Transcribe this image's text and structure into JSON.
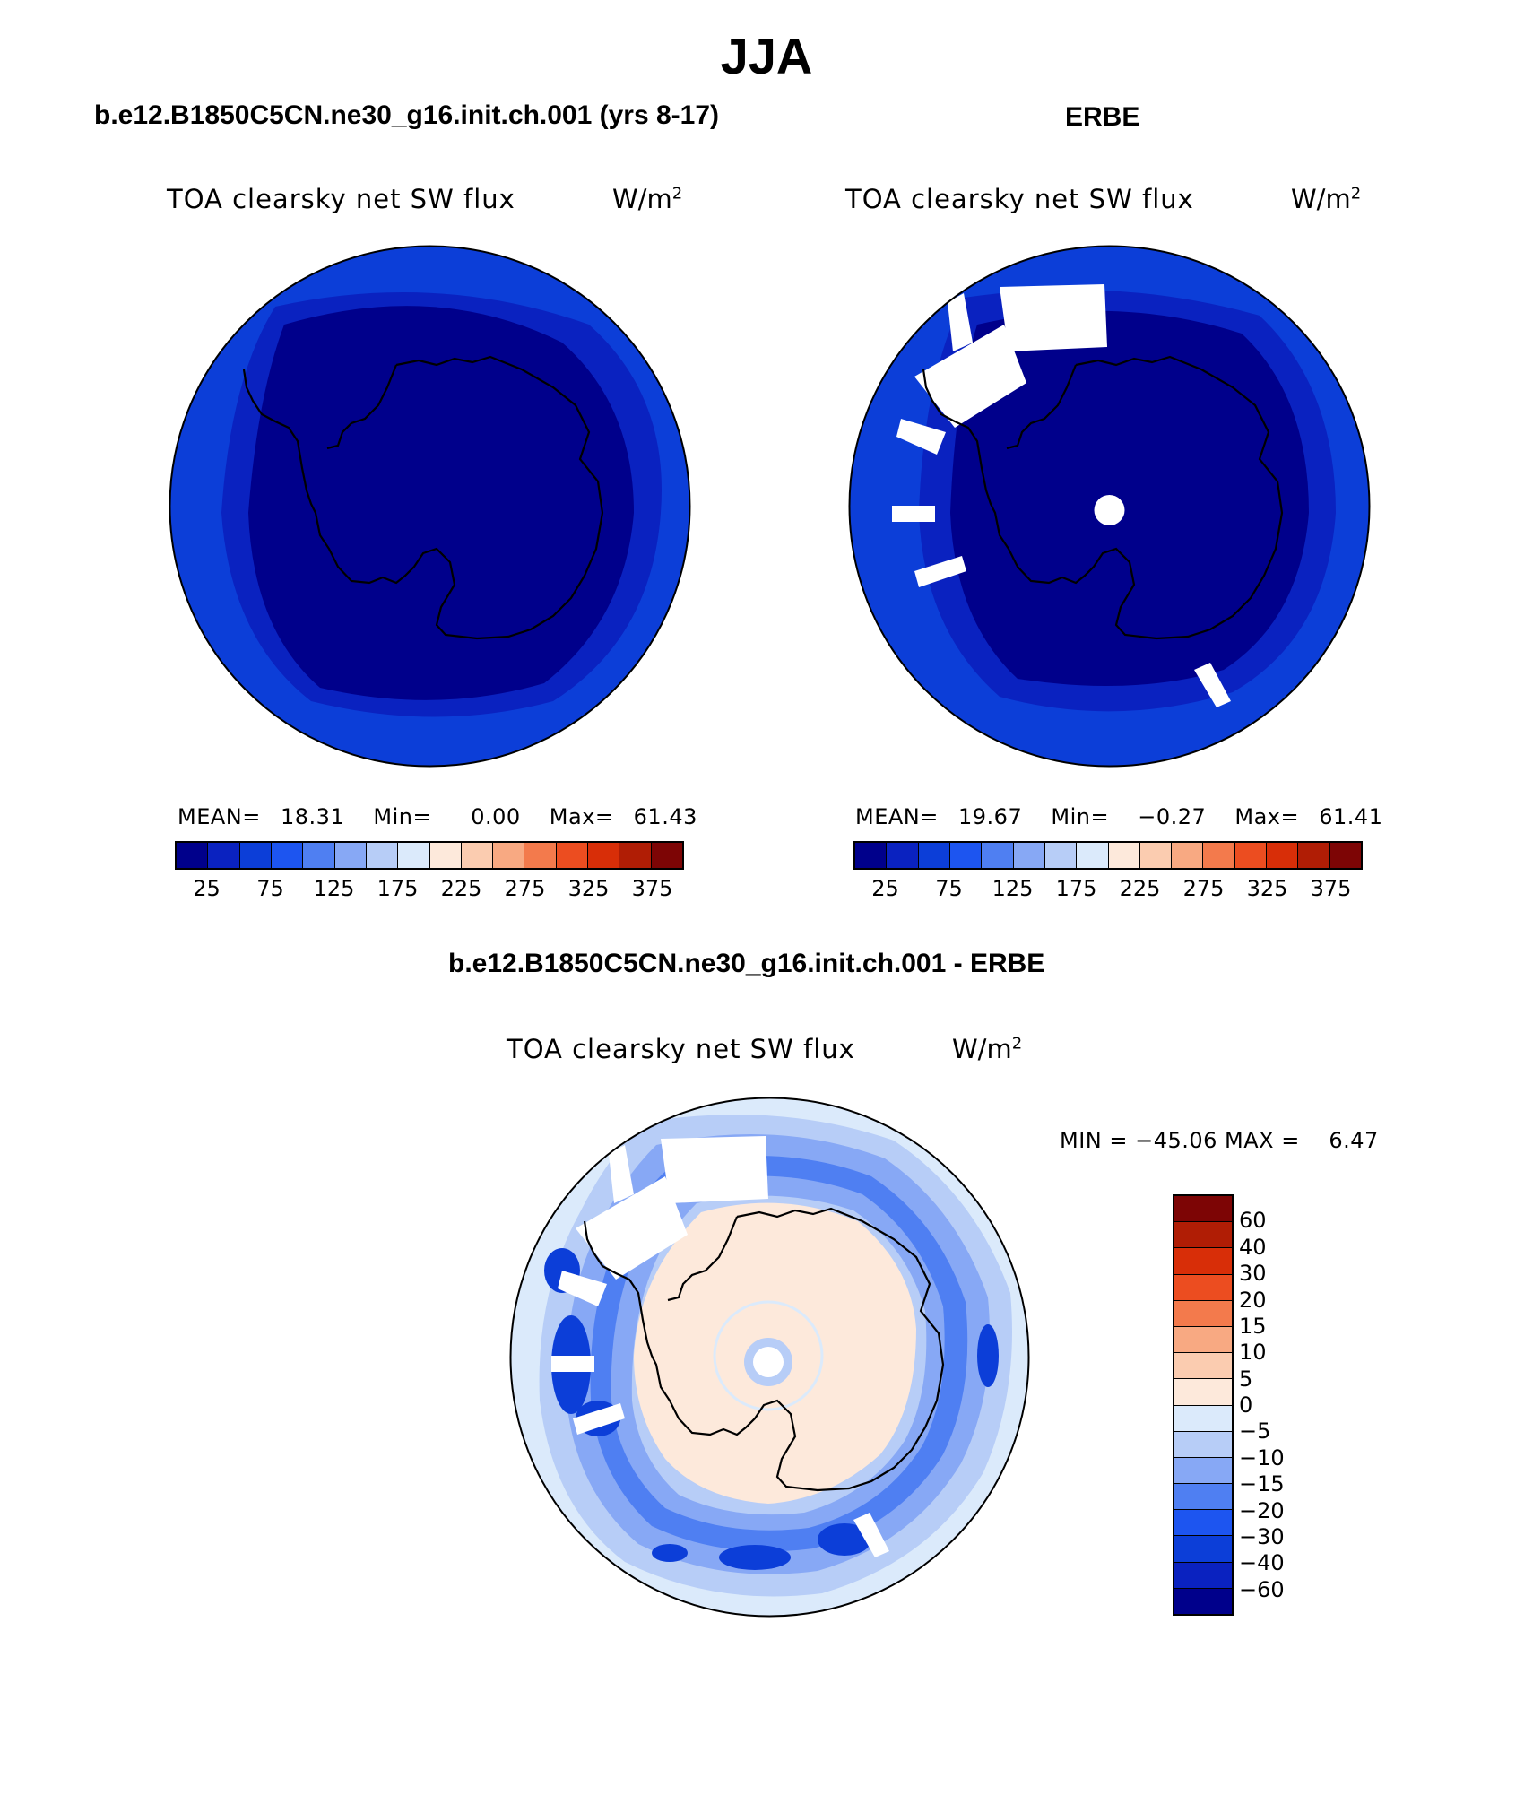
{
  "title": "JJA",
  "panels": {
    "model": {
      "case": "b.e12.B1850C5CN.ne30_g16.init.ch.001 (yrs 8-17)",
      "variable": "TOA clearsky net SW flux",
      "units_base": "W/m",
      "units_exp": "2",
      "mean_label": "MEAN=",
      "mean": "18.31",
      "min_label": "Min=",
      "min": "0.00",
      "max_label": "Max=",
      "max": "61.43"
    },
    "obs": {
      "case": "ERBE",
      "variable": "TOA clearsky net SW flux",
      "units_base": "W/m",
      "units_exp": "2",
      "mean_label": "MEAN=",
      "mean": "19.67",
      "min_label": "Min=",
      "min": "−0.27",
      "max_label": "Max=",
      "max": "61.41"
    },
    "diff": {
      "case": "b.e12.B1850C5CN.ne30_g16.init.ch.001 - ERBE",
      "variable": "TOA clearsky net SW flux",
      "units_base": "W/m",
      "units_exp": "2",
      "minmax_text": "MIN = −45.06 MAX =    6.47"
    }
  },
  "abs_colorbar": {
    "labels": [
      "25",
      "75",
      "125",
      "175",
      "225",
      "275",
      "325",
      "375"
    ],
    "colors": [
      "#00008b",
      "#0a22c0",
      "#0c3ed8",
      "#1d55f0",
      "#4f7ff2",
      "#87a8f5",
      "#b7cdf7",
      "#dbeafb",
      "#fde9db",
      "#fbccb0",
      "#f8a982",
      "#f37a4c",
      "#ec4d20",
      "#d82e08",
      "#b01d05",
      "#7d0505"
    ]
  },
  "diff_colorbar": {
    "labels": [
      "60",
      "40",
      "30",
      "20",
      "15",
      "10",
      "5",
      "0",
      "−5",
      "−10",
      "−15",
      "−20",
      "−30",
      "−40",
      "−60"
    ],
    "colors": [
      "#7d0505",
      "#b01d05",
      "#d82e08",
      "#ec4d20",
      "#f37a4c",
      "#f8a982",
      "#fbccb0",
      "#fde9db",
      "#dbeafb",
      "#b7cdf7",
      "#87a8f5",
      "#4f7ff2",
      "#1d55f0",
      "#0c3ed8",
      "#0a22c0",
      "#00008b"
    ]
  },
  "map_colors": {
    "deep": "#00008b",
    "mid": "#0a22c0",
    "outer": "#0c3ed8",
    "diff_bg": "#dbeafb",
    "diff_pos": "#fde9db",
    "diff_neg1": "#b7cdf7",
    "diff_neg2": "#87a8f5",
    "diff_neg3": "#4f7ff2",
    "diff_neg4": "#1d55f0",
    "diff_neg5": "#0c3ed8"
  }
}
